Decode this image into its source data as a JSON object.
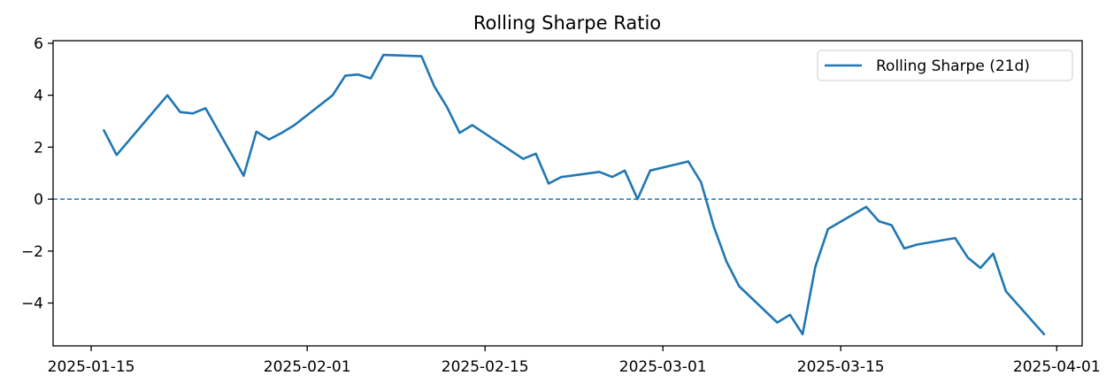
{
  "chart_data": {
    "type": "line",
    "title": "Rolling Sharpe Ratio",
    "xlabel": "",
    "ylabel": "",
    "x_ticks": [
      "2025-01-15",
      "2025-02-01",
      "2025-02-15",
      "2025-03-01",
      "2025-03-15",
      "2025-04-01"
    ],
    "y_ticks": [
      -4,
      -2,
      0,
      2,
      4,
      6
    ],
    "xlim": [
      "2025-01-12",
      "2025-04-03"
    ],
    "ylim": [
      -5.65,
      6.1
    ],
    "grid": false,
    "legend_position": "top-right",
    "reference_line": {
      "y": 0,
      "style": "dashed",
      "color": "#1f77b4"
    },
    "series": [
      {
        "name": "Rolling Sharpe (21d)",
        "color": "#1f77b4",
        "x": [
          "2025-01-16",
          "2025-01-17",
          "2025-01-21",
          "2025-01-22",
          "2025-01-23",
          "2025-01-24",
          "2025-01-27",
          "2025-01-28",
          "2025-01-29",
          "2025-01-30",
          "2025-01-31",
          "2025-02-03",
          "2025-02-04",
          "2025-02-05",
          "2025-02-06",
          "2025-02-07",
          "2025-02-10",
          "2025-02-11",
          "2025-02-12",
          "2025-02-13",
          "2025-02-14",
          "2025-02-18",
          "2025-02-19",
          "2025-02-20",
          "2025-02-21",
          "2025-02-24",
          "2025-02-25",
          "2025-02-26",
          "2025-02-27",
          "2025-02-28",
          "2025-03-03",
          "2025-03-04",
          "2025-03-05",
          "2025-03-06",
          "2025-03-07",
          "2025-03-10",
          "2025-03-11",
          "2025-03-12",
          "2025-03-13",
          "2025-03-14",
          "2025-03-17",
          "2025-03-18",
          "2025-03-19",
          "2025-03-20",
          "2025-03-21",
          "2025-03-24",
          "2025-03-25",
          "2025-03-26",
          "2025-03-27",
          "2025-03-28",
          "2025-03-31"
        ],
        "values": [
          2.65,
          1.7,
          4.0,
          3.35,
          3.3,
          3.5,
          0.9,
          2.6,
          2.3,
          2.55,
          2.85,
          4.0,
          4.75,
          4.8,
          4.65,
          5.55,
          5.5,
          4.35,
          3.55,
          2.55,
          2.85,
          1.55,
          1.75,
          0.6,
          0.85,
          1.05,
          0.85,
          1.1,
          0.0,
          1.1,
          1.45,
          0.65,
          -1.05,
          -2.4,
          -3.35,
          -4.75,
          -4.45,
          -5.2,
          -2.6,
          -1.15,
          -0.3,
          -0.85,
          -1.0,
          -1.9,
          -1.75,
          -1.5,
          -2.25,
          -2.65,
          -2.1,
          -3.55,
          -5.2
        ]
      }
    ]
  }
}
